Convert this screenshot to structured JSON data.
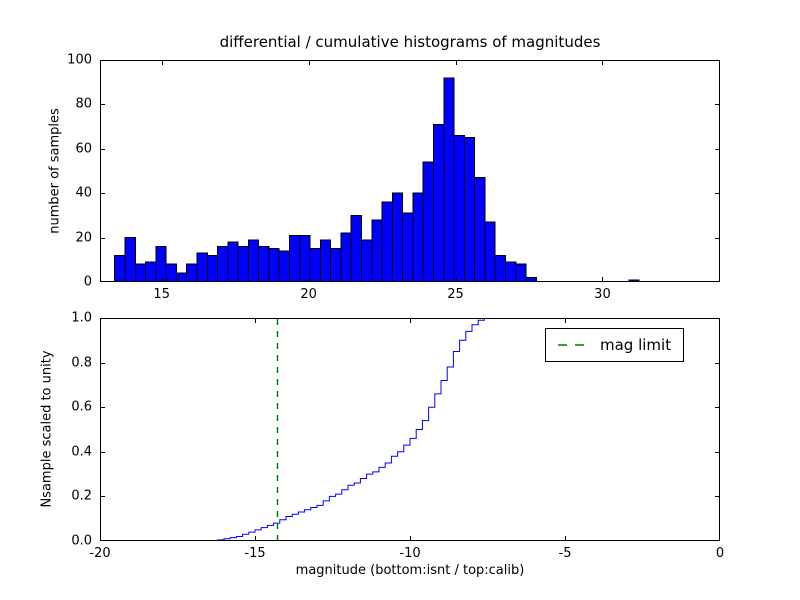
{
  "colors": {
    "background": "#ffffff",
    "bar_fill": "#0000ff",
    "bar_edge": "#000000",
    "line": "#0000ff",
    "mag_limit": "#008000",
    "axis": "#000000"
  },
  "chart_data": [
    {
      "type": "bar",
      "title": "differential / cumulative histograms of magnitudes",
      "ylabel": "number of samples",
      "xlabel": "",
      "xlim": [
        12.9,
        34.0
      ],
      "ylim": [
        0,
        100
      ],
      "xticks": [
        15,
        20,
        25,
        30
      ],
      "xticklabels": [
        "15",
        "20",
        "25",
        "30"
      ],
      "yticks": [
        0,
        20,
        40,
        60,
        80,
        100
      ],
      "yticklabels": [
        "0",
        "20",
        "40",
        "60",
        "80",
        "100"
      ],
      "grid": false,
      "bin_start": 13.4,
      "bin_width": 0.35,
      "values": [
        12,
        20,
        8,
        9,
        16,
        8,
        4,
        8,
        13,
        12,
        16,
        18,
        16,
        19,
        16,
        15,
        14,
        21,
        21,
        15,
        19,
        15,
        22,
        30,
        19,
        28,
        36,
        40,
        31,
        40,
        54,
        71,
        92,
        66,
        65,
        47,
        27,
        12,
        9,
        8,
        2,
        0,
        0,
        0,
        0,
        0,
        0,
        0,
        0,
        0,
        1,
        0,
        0
      ]
    },
    {
      "type": "line",
      "title": "",
      "ylabel": "Nsample scaled to unity",
      "xlabel": "magnitude (bottom:isnt / top:calib)",
      "xlim": [
        -20,
        0
      ],
      "ylim": [
        0.0,
        1.0
      ],
      "xticks": [
        -20,
        -15,
        -10,
        -5,
        0
      ],
      "xticklabels": [
        "-20",
        "-15",
        "-10",
        "-5",
        "0"
      ],
      "yticks": [
        0.0,
        0.2,
        0.4,
        0.6,
        0.8,
        1.0
      ],
      "yticklabels": [
        "0.0",
        "0.2",
        "0.4",
        "0.6",
        "0.8",
        "1.0"
      ],
      "grid": false,
      "step_start": -16.4,
      "step_width": 0.2,
      "cumulative": [
        0.005,
        0.01,
        0.015,
        0.02,
        0.03,
        0.04,
        0.05,
        0.06,
        0.07,
        0.08,
        0.095,
        0.11,
        0.12,
        0.13,
        0.14,
        0.15,
        0.16,
        0.18,
        0.2,
        0.21,
        0.23,
        0.25,
        0.26,
        0.28,
        0.3,
        0.31,
        0.33,
        0.35,
        0.38,
        0.4,
        0.43,
        0.46,
        0.5,
        0.54,
        0.6,
        0.66,
        0.72,
        0.78,
        0.85,
        0.9,
        0.94,
        0.97,
        0.99,
        1.0,
        1.0,
        1.0,
        1.0,
        1.0,
        1.0,
        1.0,
        1.0,
        1.0
      ],
      "mag_limit_x": -14.3,
      "legend": {
        "label": "mag limit",
        "style": "dashed",
        "color": "#008000",
        "position": "upper right"
      }
    }
  ]
}
